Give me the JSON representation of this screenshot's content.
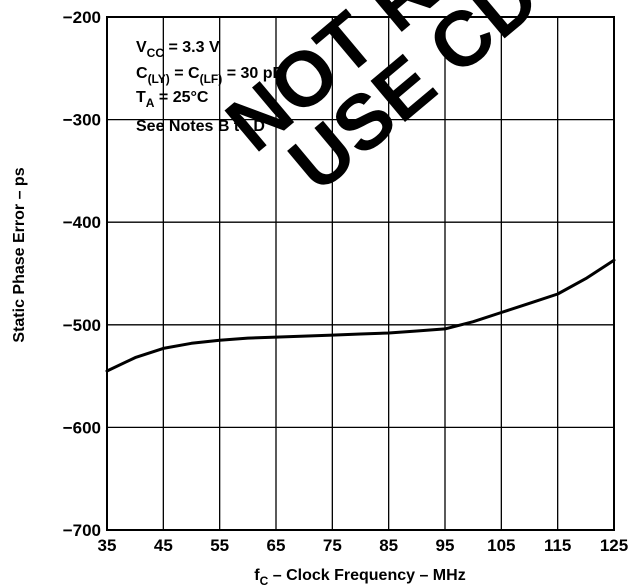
{
  "chart_data": {
    "type": "line",
    "title": "",
    "xlabel": {
      "main": "f",
      "sub": "C",
      "rest": " – Clock Frequency – MHz"
    },
    "ylabel": "Static Phase Error – ps",
    "xlim": [
      35,
      125
    ],
    "ylim": [
      -700,
      -200
    ],
    "xticks": [
      35,
      45,
      55,
      65,
      75,
      85,
      95,
      105,
      115,
      125
    ],
    "yticks": [
      -200,
      -300,
      -400,
      -500,
      -600,
      -700
    ],
    "grid": true,
    "series": [
      {
        "x": [
          35,
          40,
          45,
          50,
          55,
          60,
          65,
          70,
          75,
          80,
          85,
          90,
          95,
          100,
          105,
          110,
          115,
          120,
          125
        ],
        "y": [
          -545,
          -532,
          -523,
          -518,
          -515,
          -513,
          -512,
          -511,
          -510,
          -509,
          -508,
          -506,
          -504,
          -497,
          -488,
          -479,
          -470,
          -455,
          -437
        ]
      }
    ],
    "annotations": [
      {
        "main": "V",
        "sub": "CC",
        "rest": " = 3.3 V"
      },
      {
        "main": "C",
        "sub": "(LY)",
        "mid": " = C",
        "sub2": "(LF)",
        "rest": " = 30 pF"
      },
      {
        "main": "T",
        "sub": "A",
        "rest": " = 25°C"
      },
      {
        "main": "See Notes B to D"
      }
    ],
    "watermark": [
      "NOT RE",
      "USE CDC"
    ]
  }
}
